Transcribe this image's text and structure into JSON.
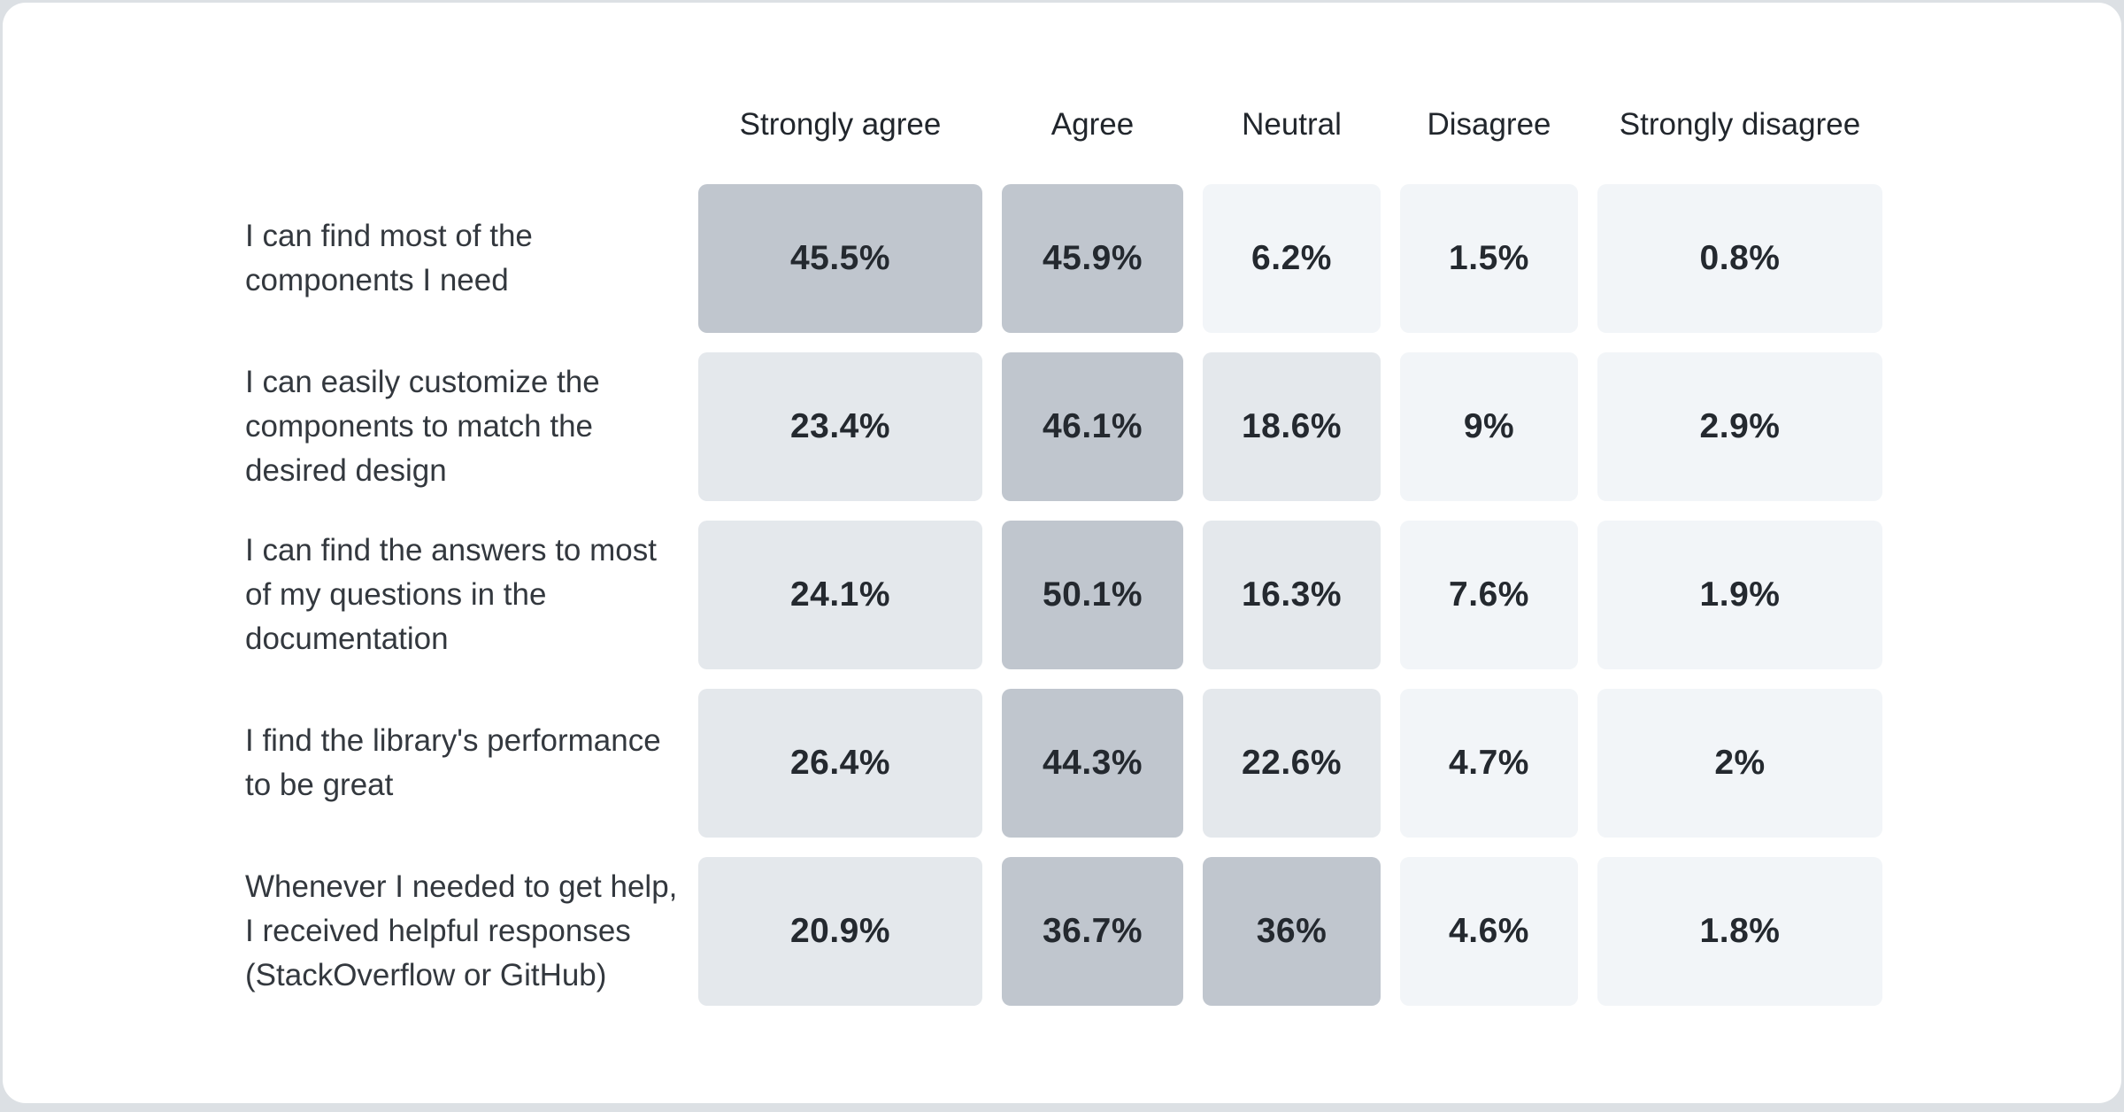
{
  "chart_data": {
    "type": "heatmap",
    "title": "",
    "columns": [
      "Strongly agree",
      "Agree",
      "Neutral",
      "Disagree",
      "Strongly disagree"
    ],
    "rows": [
      {
        "label": "I can find most of the components I need",
        "values": [
          45.5,
          45.9,
          6.2,
          1.5,
          0.8
        ],
        "display": [
          "45.5%",
          "45.9%",
          "6.2%",
          "1.5%",
          "0.8%"
        ]
      },
      {
        "label": "I can easily customize the components to match the desired design",
        "values": [
          23.4,
          46.1,
          18.6,
          9,
          2.9
        ],
        "display": [
          "23.4%",
          "46.1%",
          "18.6%",
          "9%",
          "2.9%"
        ]
      },
      {
        "label": "I can find the answers to most of my questions in the documentation",
        "values": [
          24.1,
          50.1,
          16.3,
          7.6,
          1.9
        ],
        "display": [
          "24.1%",
          "50.1%",
          "16.3%",
          "7.6%",
          "1.9%"
        ]
      },
      {
        "label": "I find the library's performance to be great",
        "values": [
          26.4,
          44.3,
          22.6,
          4.7,
          2
        ],
        "display": [
          "26.4%",
          "44.3%",
          "22.6%",
          "4.7%",
          "2%"
        ]
      },
      {
        "label": "Whenever I needed to get help, I received helpful responses (StackOverflow or GitHub)",
        "values": [
          20.9,
          36.7,
          36,
          4.6,
          1.8
        ],
        "display": [
          "20.9%",
          "36.7%",
          "36%",
          "4.6%",
          "1.8%"
        ]
      }
    ],
    "legend_position": "none",
    "grid": false,
    "heat_colors": {
      "high": "#c0c6ce",
      "mid": "#e4e8ec",
      "low": "#f2f5f8"
    },
    "heat_thresholds": {
      "high_min": 30,
      "mid_min": 10
    },
    "value_range": [
      0,
      100
    ]
  },
  "page": {
    "background": "#dce0e4",
    "card_background": "#ffffff"
  }
}
